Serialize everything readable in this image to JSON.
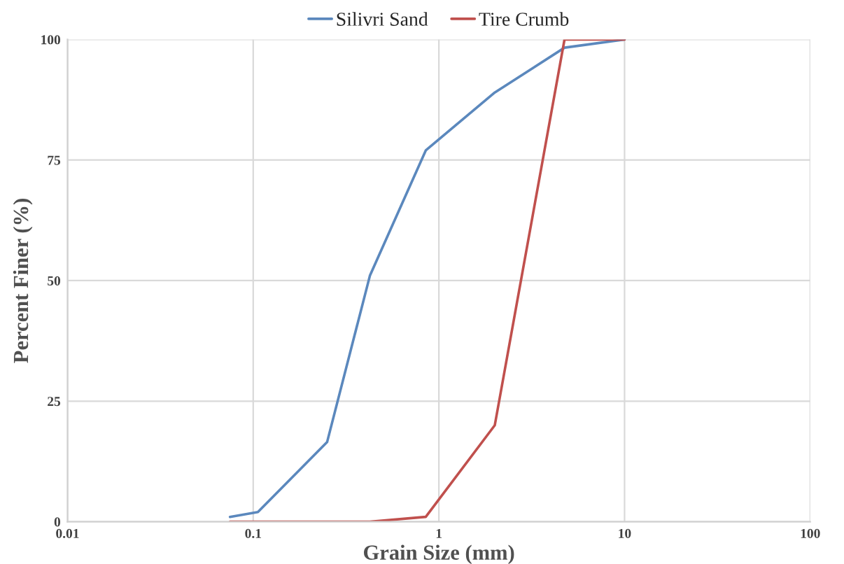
{
  "chart_data": {
    "type": "line",
    "xlabel": "Grain Size (mm)",
    "ylabel": "Percent Finer (%)",
    "x": [
      0.075,
      0.106,
      0.25,
      0.425,
      0.85,
      2,
      4.75,
      10
    ],
    "series": [
      {
        "name": "Silivri Sand",
        "color": "#5b88bd",
        "values": [
          1,
          2,
          16.5,
          51,
          77,
          89,
          98.3,
          100
        ]
      },
      {
        "name": "Tire Crumb",
        "color": "#c0504d",
        "values": [
          0,
          0,
          0,
          0,
          1,
          20,
          100,
          100
        ]
      }
    ],
    "log": "x",
    "xlim": [
      0.01,
      100
    ],
    "xticks": [
      0.01,
      0.1,
      1,
      10,
      100
    ],
    "ylim": [
      0,
      100
    ],
    "yticks": [
      0,
      25,
      50,
      75,
      100
    ],
    "grid": true,
    "legend": "top",
    "marker": "none",
    "line_style": "solid"
  }
}
